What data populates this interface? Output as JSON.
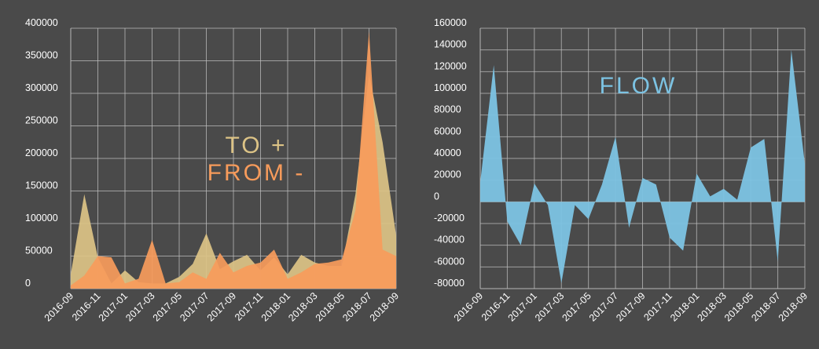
{
  "colors": {
    "background": "#4a4a4a",
    "grid": "#bdbdbd",
    "text": "#ffffff",
    "to_fill": "#dcc386",
    "from_fill": "#f79b5b",
    "flow_fill": "#7cc3e3"
  },
  "chart_data": [
    {
      "type": "area",
      "title_lines": [
        "TO +",
        "FROM -"
      ],
      "xlabel": "",
      "ylabel": "",
      "x_tick_labels": [
        "2016-09",
        "2016-11",
        "2017-01",
        "2017-03",
        "2017-05",
        "2017-07",
        "2017-09",
        "2017-11",
        "2018-01",
        "2018-03",
        "2018-05",
        "2018-07",
        "2018-09"
      ],
      "x": [
        "2016-09",
        "2016-10",
        "2016-11",
        "2016-12",
        "2017-01",
        "2017-02",
        "2017-03",
        "2017-04",
        "2017-05",
        "2017-06",
        "2017-07",
        "2017-08",
        "2017-09",
        "2017-10",
        "2017-11",
        "2017-12",
        "2018-01",
        "2018-02",
        "2018-03",
        "2018-04",
        "2018-05",
        "2018-06",
        "2018-07",
        "2018-08",
        "2018-09"
      ],
      "ylim": [
        0,
        400000
      ],
      "y_ticks": [
        0,
        50000,
        100000,
        150000,
        200000,
        250000,
        300000,
        350000,
        400000
      ],
      "grid": true,
      "series": [
        {
          "values": [
            22000,
            145000,
            48000,
            8000,
            28000,
            10000,
            8000,
            8000,
            18000,
            38000,
            85000,
            30000,
            42000,
            52000,
            28000,
            48000,
            22000,
            52000,
            40000,
            35000,
            35000,
            145000,
            330000,
            225000,
            82000
          ]
        },
        {
          "values": [
            5000,
            20000,
            50000,
            48000,
            8000,
            15000,
            75000,
            8000,
            10000,
            25000,
            15000,
            55000,
            25000,
            35000,
            40000,
            60000,
            15000,
            25000,
            38000,
            40000,
            45000,
            120000,
            395000,
            60000,
            50000
          ]
        }
      ]
    },
    {
      "type": "area",
      "title": "FLOW",
      "xlabel": "",
      "ylabel": "",
      "x_tick_labels": [
        "2016-09",
        "2016-11",
        "2017-01",
        "2017-03",
        "2017-05",
        "2017-07",
        "2017-09",
        "2017-11",
        "2018-01",
        "2018-03",
        "2018-05",
        "2018-07",
        "2018-09"
      ],
      "x": [
        "2016-09",
        "2016-10",
        "2016-11",
        "2016-12",
        "2017-01",
        "2017-02",
        "2017-03",
        "2017-04",
        "2017-05",
        "2017-06",
        "2017-07",
        "2017-08",
        "2017-09",
        "2017-10",
        "2017-11",
        "2017-12",
        "2018-01",
        "2018-02",
        "2018-03",
        "2018-04",
        "2018-05",
        "2018-06",
        "2018-07",
        "2018-08",
        "2018-09"
      ],
      "ylim": [
        -80000,
        160000
      ],
      "y_ticks": [
        -80000,
        -60000,
        -40000,
        -20000,
        0,
        20000,
        40000,
        60000,
        80000,
        100000,
        120000,
        140000,
        160000
      ],
      "grid": true,
      "series": [
        {
          "values": [
            18000,
            126000,
            -18000,
            -40000,
            17000,
            -3000,
            -75000,
            -3000,
            -16000,
            16000,
            60000,
            -24000,
            22000,
            16000,
            -33000,
            -45000,
            26000,
            5000,
            12000,
            2000,
            50000,
            58000,
            -55000,
            140000,
            35000
          ]
        }
      ]
    }
  ]
}
